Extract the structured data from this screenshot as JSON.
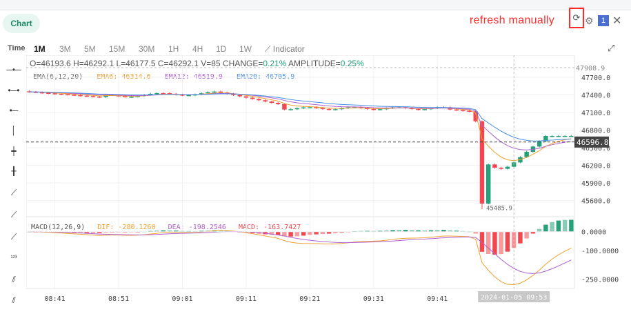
{
  "header": {
    "tab_label": "Chart",
    "annotation": "refresh manually",
    "badge": "1"
  },
  "toolbar": {
    "time_label": "Time",
    "intervals": [
      "1M",
      "3M",
      "5M",
      "15M",
      "30M",
      "1H",
      "4H",
      "1D",
      "1W"
    ],
    "active_interval": "1M",
    "indicator_label": "Indicator"
  },
  "stats": {
    "open": "O=46193.6",
    "high": "H=46292.1",
    "low": "L=46177.5",
    "close": "C=46292.1",
    "volume": "V=85",
    "change_label": "CHANGE=",
    "change": "0.21%",
    "amplitude_label": "AMPLITUDE=",
    "amplitude": "0.25%"
  },
  "ema_legend": {
    "title": "EMA(6,12,20)",
    "ema6": "EMA6: 46314.6",
    "ema12": "EMA12: 46519.9",
    "ema20": "EMA20: 46705.9"
  },
  "macd_legend": {
    "title": "MACD(12,26,9)",
    "dif": "DIF: -280.1260",
    "dea": "DEA: -198.2546",
    "macd": "MACD: -163.7427"
  },
  "colors": {
    "up": "#26a17b",
    "down": "#f0484e",
    "ema6": "#f0a030",
    "ema12": "#b060d0",
    "ema20": "#4a90e2",
    "accent": "#ff2b2b"
  },
  "chart_data": {
    "type": "candlestick",
    "price_axis_ticks": [
      "47700.0",
      "47400.0",
      "47100.0",
      "46800.0",
      "46500.0",
      "46200.0",
      "45900.0",
      "45600.0"
    ],
    "price_tick_values": [
      47700,
      47400,
      47100,
      46800,
      46500,
      46200,
      45900,
      45600
    ],
    "price_range": [
      45350,
      47980
    ],
    "max_label": "47908.9",
    "min_label": "45485.9",
    "current_price_label": "46596.8",
    "current_price": 46596.8,
    "macd_axis_ticks": [
      "0.0000",
      "-100.0000",
      "-250.0000"
    ],
    "macd_tick_values": [
      0,
      -100,
      -250
    ],
    "macd_range": [
      -300,
      50
    ],
    "time_labels": [
      "08:41",
      "08:51",
      "09:01",
      "09:11",
      "09:21",
      "09:31",
      "09:41"
    ],
    "time_label_index": [
      4,
      14,
      24,
      34,
      44,
      54,
      64
    ],
    "crosshair_time": "2024-01-05 09:53",
    "crosshair_index": 76
  }
}
